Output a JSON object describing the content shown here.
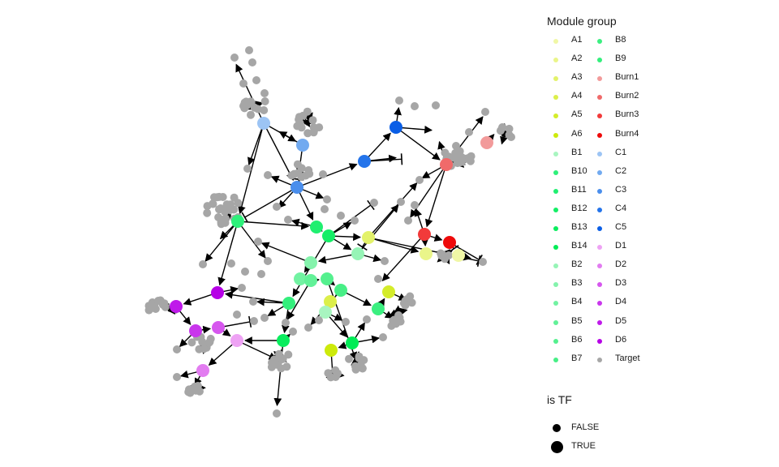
{
  "legend_group": {
    "title": "Module group",
    "items": [
      {
        "label": "A1",
        "color": "#f0f7a6"
      },
      {
        "label": "A2",
        "color": "#eaf58a"
      },
      {
        "label": "A3",
        "color": "#e3f26a"
      },
      {
        "label": "A4",
        "color": "#dcef4a"
      },
      {
        "label": "A5",
        "color": "#d4ec2a"
      },
      {
        "label": "A6",
        "color": "#cdea0b"
      },
      {
        "label": "B1",
        "color": "#a8f5c0"
      },
      {
        "label": "B10",
        "color": "#2ef07a"
      },
      {
        "label": "B11",
        "color": "#1fef70"
      },
      {
        "label": "B12",
        "color": "#14ee66"
      },
      {
        "label": "B13",
        "color": "#0aed5e"
      },
      {
        "label": "B14",
        "color": "#00ec56"
      },
      {
        "label": "B2",
        "color": "#96f4b6"
      },
      {
        "label": "B3",
        "color": "#84f3ac"
      },
      {
        "label": "B4",
        "color": "#72f2a2"
      },
      {
        "label": "B5",
        "color": "#62f198"
      },
      {
        "label": "B6",
        "color": "#54f08e"
      },
      {
        "label": "B7",
        "color": "#47ef86"
      },
      {
        "label": "B8",
        "color": "#3bef80"
      },
      {
        "label": "B9",
        "color": "#33ef7c"
      },
      {
        "label": "Burn1",
        "color": "#f29a9a"
      },
      {
        "label": "Burn2",
        "color": "#f06a6a"
      },
      {
        "label": "Burn3",
        "color": "#f23a3a"
      },
      {
        "label": "Burn4",
        "color": "#ee0a0a"
      },
      {
        "label": "C1",
        "color": "#9cc4f4"
      },
      {
        "label": "C2",
        "color": "#72aaf0"
      },
      {
        "label": "C3",
        "color": "#4a8eec"
      },
      {
        "label": "C4",
        "color": "#2474ea"
      },
      {
        "label": "C5",
        "color": "#0a5ee6"
      },
      {
        "label": "D1",
        "color": "#eea2f4"
      },
      {
        "label": "D2",
        "color": "#e27cf0"
      },
      {
        "label": "D3",
        "color": "#d656ee"
      },
      {
        "label": "D4",
        "color": "#c936ec"
      },
      {
        "label": "D5",
        "color": "#bf1aea"
      },
      {
        "label": "D6",
        "color": "#b600e6"
      },
      {
        "label": "Target",
        "color": "#a6a6a6"
      }
    ]
  },
  "legend_tf": {
    "title": "is TF",
    "items": [
      {
        "label": "FALSE",
        "size": "small"
      },
      {
        "label": "TRUE",
        "size": "large"
      }
    ]
  }
}
